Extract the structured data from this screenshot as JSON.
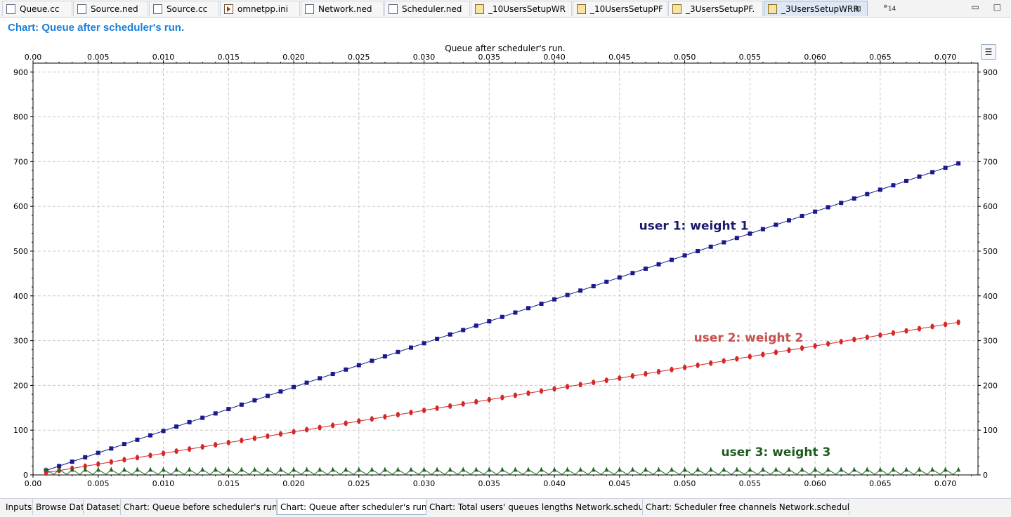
{
  "editor_tabs": [
    {
      "label": "Queue.cc",
      "icon": "c-file-icon",
      "active": false
    },
    {
      "label": "Source.ned",
      "icon": "ned-file-icon",
      "active": false
    },
    {
      "label": "Source.cc",
      "icon": "c-file-icon",
      "active": false
    },
    {
      "label": "omnetpp.ini",
      "icon": "ini-file-icon",
      "active": false
    },
    {
      "label": "Network.ned",
      "icon": "ned-file-icon",
      "active": false
    },
    {
      "label": "Scheduler.ned",
      "icon": "ned-file-icon",
      "active": false
    },
    {
      "label": "_10UsersSetupWR",
      "icon": "analysis-file-icon",
      "active": false
    },
    {
      "label": "_10UsersSetupPF",
      "icon": "analysis-file-icon",
      "active": false
    },
    {
      "label": "_3UsersSetupPF.",
      "icon": "analysis-file-icon",
      "active": false
    },
    {
      "label": "_3UsersSetupWRR",
      "icon": "analysis-file-icon",
      "active": true
    }
  ],
  "overflow_tabs": {
    "symbol": "»",
    "count": "14"
  },
  "window_controls": {
    "minimize": "▭",
    "maximize": "□"
  },
  "page_title": "Chart: Queue after scheduler's run.",
  "legend_button": "☰",
  "chart_data": {
    "type": "line",
    "title": "Queue after scheduler's run.",
    "xlabel": "",
    "ylabel": "",
    "xlim": [
      0,
      0.0725
    ],
    "ylim": [
      0,
      920
    ],
    "x_ticks": [
      "0.00",
      "0.005",
      "0.010",
      "0.015",
      "0.020",
      "0.025",
      "0.030",
      "0.035",
      "0.040",
      "0.045",
      "0.050",
      "0.055",
      "0.060",
      "0.065",
      "0.070"
    ],
    "y_ticks": [
      "0",
      "100",
      "200",
      "300",
      "400",
      "500",
      "600",
      "700",
      "800",
      "900"
    ],
    "grid": true,
    "x_start": 0.001,
    "x_step": 0.001,
    "x_count": 71,
    "series": [
      {
        "id": "user1",
        "color": "#1a1a8c",
        "marker": "square",
        "start": 10,
        "step": 9.8,
        "sawtooth": false
      },
      {
        "id": "user2",
        "color": "#d42828",
        "marker": "oval",
        "start": 5,
        "step": 4.8,
        "sawtooth": false
      },
      {
        "id": "user3",
        "color": "#1e6b1e",
        "marker": "triangle",
        "low": 1,
        "high": 12,
        "sawtooth": true
      }
    ],
    "annotations": [
      {
        "text": "user 1: weight 1",
        "color": "#1a1a6e",
        "x": 0.0465,
        "y": 548
      },
      {
        "text": "user 2: weight 2",
        "color": "#c85050",
        "x": 0.0507,
        "y": 298
      },
      {
        "text": "user 3: weight 3",
        "color": "#1e5a1e",
        "x": 0.0528,
        "y": 42
      }
    ]
  },
  "bottom_tabs": [
    {
      "label": "Inputs",
      "active": false
    },
    {
      "label": "Browse Data",
      "active": false
    },
    {
      "label": "Datasets",
      "active": false
    },
    {
      "label": "Chart: Queue before scheduler's run.",
      "active": false
    },
    {
      "label": "Chart: Queue after scheduler's run.",
      "active": true
    },
    {
      "label": "Chart: Total users' queues lengths Network.scheduler",
      "active": false
    },
    {
      "label": "Chart: Scheduler free channels Network.scheduler",
      "active": false
    }
  ],
  "close_symbol": "⊠"
}
